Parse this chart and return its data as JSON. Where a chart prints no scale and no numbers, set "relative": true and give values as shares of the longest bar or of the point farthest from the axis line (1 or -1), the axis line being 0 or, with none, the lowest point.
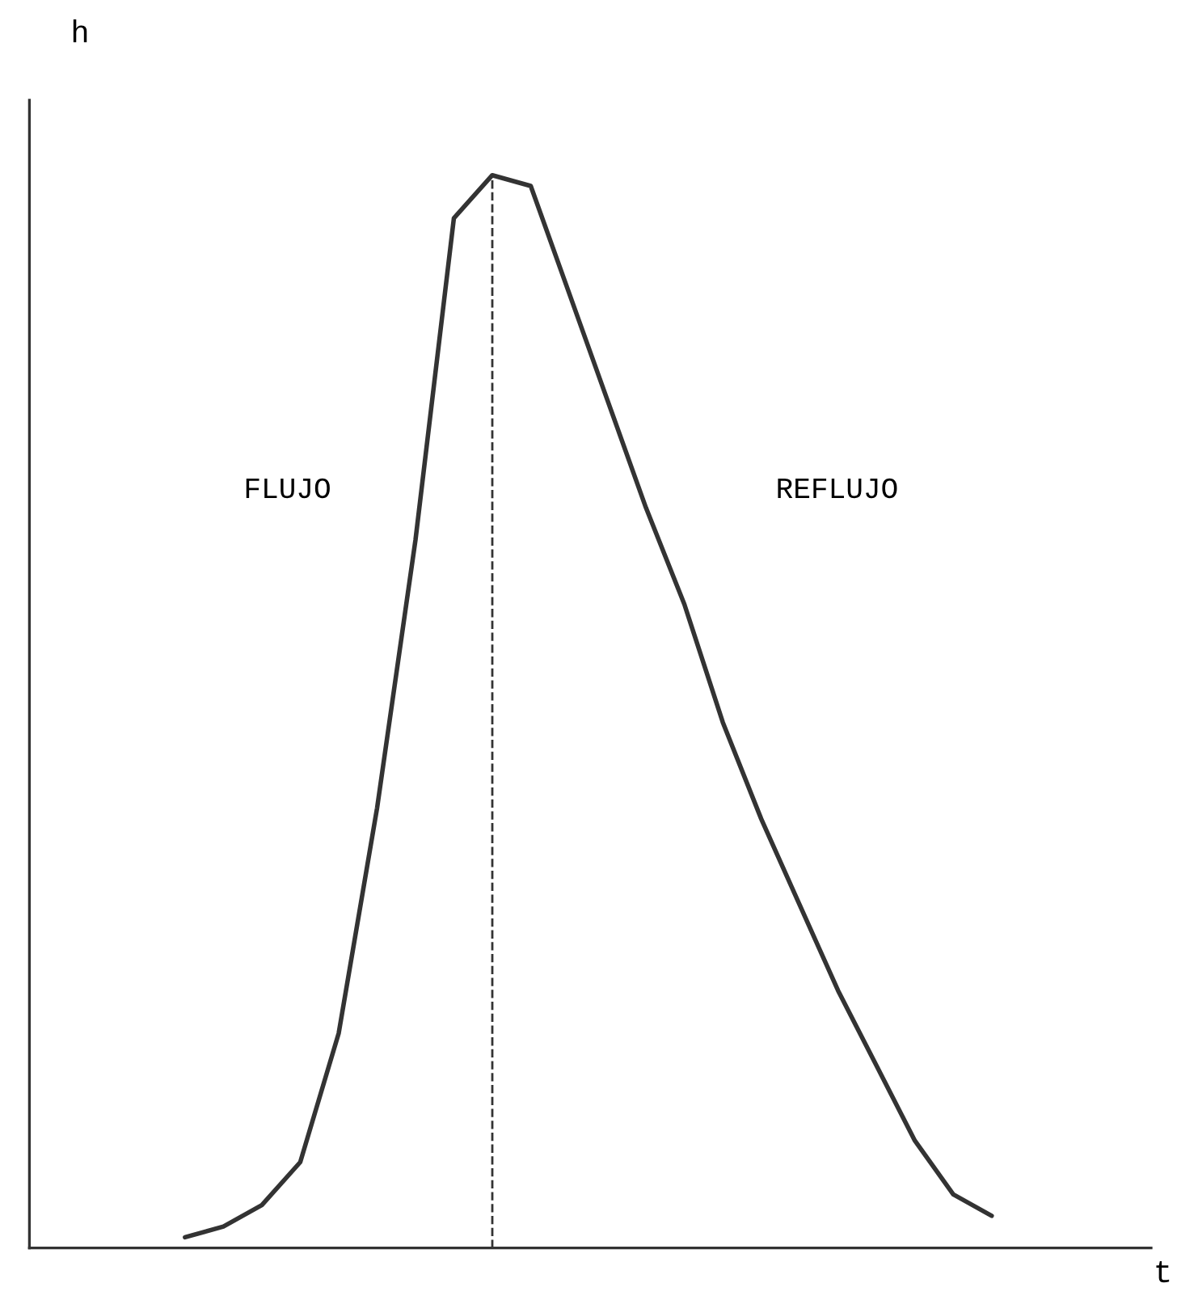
{
  "chart_data": {
    "type": "line",
    "relative": true,
    "xlabel": "t",
    "ylabel": "h",
    "categories": [
      null,
      null,
      null,
      null,
      null,
      null,
      null,
      null,
      null,
      null,
      null,
      null,
      null,
      null,
      null,
      null,
      null,
      null,
      null,
      null,
      null,
      null,
      null,
      null,
      null,
      null,
      null,
      null,
      null,
      null
    ],
    "series": [
      {
        "color": "#333333",
        "values": [
          null,
          null,
          null,
          null,
          0.01,
          0.02,
          0.04,
          0.08,
          0.2,
          0.41,
          0.66,
          0.96,
          1.0,
          0.99,
          0.89,
          0.79,
          0.69,
          0.6,
          0.49,
          0.4,
          0.32,
          0.24,
          0.17,
          0.1,
          0.05,
          0.03,
          null,
          null,
          null,
          null
        ]
      }
    ],
    "annotations": [
      "FLUJO",
      "REFLUJO"
    ],
    "marker": "none",
    "line_style": "solid",
    "grid": false,
    "legend": false
  }
}
